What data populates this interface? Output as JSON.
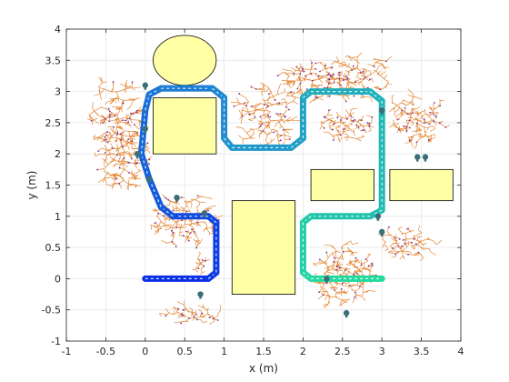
{
  "chart_data": {
    "type": "scatter",
    "xlabel": "x (m)",
    "ylabel": "y (m)",
    "xlim": [
      -1,
      4
    ],
    "ylim": [
      -1,
      4
    ],
    "xticks": [
      -1,
      -0.5,
      0,
      0.5,
      1,
      1.5,
      2,
      2.5,
      3,
      3.5,
      4
    ],
    "yticks": [
      -1,
      -0.5,
      0,
      0.5,
      1,
      1.5,
      2,
      2.5,
      3,
      3.5,
      4
    ],
    "xtick_labels": [
      "-1",
      "-0.5",
      "0",
      "0.5",
      "1",
      "1.5",
      "2",
      "2.5",
      "3",
      "3.5",
      "4"
    ],
    "ytick_labels": [
      "-1",
      "-0.5",
      "0",
      "0.5",
      "1",
      "1.5",
      "2",
      "2.5",
      "3",
      "3.5",
      "4"
    ],
    "grid": true,
    "colors": {
      "obstacle_fill": "#ffffa6",
      "obstacle_edge": "#000000",
      "tree_edge": "#e07a1f",
      "tree_node": "#7b2fa0",
      "path_start": "#0a2fe6",
      "path_mid": "#1f8fd0",
      "path_end": "#22d9a0",
      "robot_marker": "#3a6e7a",
      "grid": "#e6e6e6",
      "axes": "#262626"
    },
    "obstacles": [
      {
        "shape": "ellipse",
        "cx": 0.5,
        "cy": 3.5,
        "rx": 0.4,
        "ry": 0.4
      },
      {
        "shape": "rect",
        "x0": 0.1,
        "y0": 2.0,
        "x1": 0.9,
        "y1": 2.9
      },
      {
        "shape": "rect",
        "x0": 1.1,
        "y0": -0.25,
        "x1": 1.9,
        "y1": 1.25
      },
      {
        "shape": "rect",
        "x0": 2.1,
        "y0": 1.25,
        "x1": 2.9,
        "y1": 1.75
      },
      {
        "shape": "rect",
        "x0": 3.1,
        "y0": 1.25,
        "x1": 3.9,
        "y1": 1.75
      }
    ],
    "path": [
      [
        0.0,
        0.0
      ],
      [
        0.8,
        0.0
      ],
      [
        0.9,
        0.1
      ],
      [
        0.9,
        0.9
      ],
      [
        0.8,
        1.0
      ],
      [
        0.35,
        1.0
      ],
      [
        0.2,
        1.15
      ],
      [
        0.05,
        1.6
      ],
      [
        -0.05,
        2.0
      ],
      [
        0.0,
        2.7
      ],
      [
        0.05,
        2.95
      ],
      [
        0.2,
        3.05
      ],
      [
        0.85,
        3.05
      ],
      [
        1.0,
        2.9
      ],
      [
        1.0,
        2.25
      ],
      [
        1.1,
        2.1
      ],
      [
        1.85,
        2.1
      ],
      [
        2.0,
        2.25
      ],
      [
        2.0,
        2.9
      ],
      [
        2.1,
        3.0
      ],
      [
        2.85,
        3.0
      ],
      [
        3.0,
        2.85
      ],
      [
        3.0,
        1.1
      ],
      [
        2.85,
        1.0
      ],
      [
        2.1,
        1.0
      ],
      [
        2.0,
        0.9
      ],
      [
        2.0,
        0.1
      ],
      [
        2.1,
        0.0
      ],
      [
        3.0,
        0.0
      ]
    ],
    "robot_positions": [
      [
        0.0,
        3.1
      ],
      [
        0.0,
        2.4
      ],
      [
        -0.1,
        2.0
      ],
      [
        0.05,
        1.6
      ],
      [
        0.4,
        1.3
      ],
      [
        0.75,
        1.05
      ],
      [
        0.7,
        -0.25
      ],
      [
        2.95,
        1.0
      ],
      [
        3.0,
        0.75
      ],
      [
        3.0,
        2.7
      ],
      [
        3.45,
        1.95
      ],
      [
        3.55,
        1.95
      ],
      [
        2.3,
        0.0
      ],
      [
        2.55,
        -0.55
      ]
    ],
    "tree_regions": [
      {
        "cx": -0.3,
        "cy": 2.3,
        "rx": 0.55,
        "ry": 1.3,
        "n": 520
      },
      {
        "cx": 0.5,
        "cy": 0.95,
        "rx": 0.65,
        "ry": 0.55,
        "n": 300
      },
      {
        "cx": 0.6,
        "cy": -0.55,
        "rx": 0.5,
        "ry": 0.22,
        "n": 120
      },
      {
        "cx": 1.55,
        "cy": 2.6,
        "rx": 0.55,
        "ry": 0.7,
        "n": 280
      },
      {
        "cx": 2.4,
        "cy": 3.2,
        "rx": 1.0,
        "ry": 0.5,
        "n": 420
      },
      {
        "cx": 3.45,
        "cy": 2.55,
        "rx": 0.5,
        "ry": 0.55,
        "n": 260
      },
      {
        "cx": 2.55,
        "cy": 2.45,
        "rx": 0.5,
        "ry": 0.35,
        "n": 180
      },
      {
        "cx": 2.55,
        "cy": 0.05,
        "rx": 0.55,
        "ry": 0.65,
        "n": 360
      },
      {
        "cx": 3.3,
        "cy": 0.55,
        "rx": 0.5,
        "ry": 0.35,
        "n": 160
      },
      {
        "cx": 0.7,
        "cy": 0.25,
        "rx": 0.12,
        "ry": 0.25,
        "n": 40
      }
    ]
  }
}
